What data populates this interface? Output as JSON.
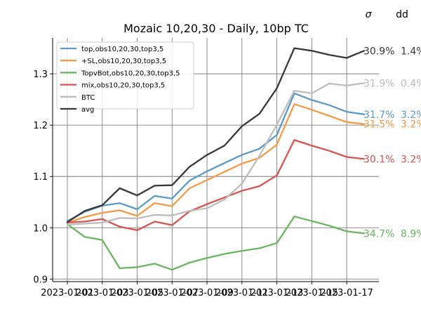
{
  "chart_data": {
    "type": "line",
    "title": "Mozaic 10,20,30 - Daily, 10bp TC",
    "xlabel": "",
    "ylabel": "",
    "x": [
      "2023-01-01",
      "2023-01-02",
      "2023-01-03",
      "2023-01-04",
      "2023-01-05",
      "2023-01-06",
      "2023-01-07",
      "2023-01-08",
      "2023-01-09",
      "2023-01-10",
      "2023-01-11",
      "2023-01-12",
      "2023-01-13",
      "2023-01-14",
      "2023-01-15",
      "2023-01-16",
      "2023-01-17",
      "2023-01-18"
    ],
    "xticks": [
      "2023-01-01",
      "2023-01-03",
      "2023-01-05",
      "2023-01-07",
      "2023-01-09",
      "2023-01-11",
      "2023-01-13",
      "2023-01-15",
      "2023-01-17"
    ],
    "ylim": [
      0.895,
      1.37
    ],
    "yticks": [
      0.9,
      1.0,
      1.1,
      1.2,
      1.3
    ],
    "ytick_labels": [
      "0.9",
      "1.0",
      "1.1",
      "1.2",
      "1.3"
    ],
    "grid": true,
    "legend_position": "top-left",
    "header_labels": {
      "sigma": "σ",
      "dd": "dd"
    },
    "series": [
      {
        "name": "top,obs10,20,30,top3,5",
        "color": "#5b9bc8",
        "sigma": "31.7%",
        "dd": "3.2%",
        "values": [
          1.013,
          1.031,
          1.043,
          1.048,
          1.036,
          1.062,
          1.057,
          1.092,
          1.11,
          1.126,
          1.142,
          1.154,
          1.181,
          1.262,
          1.249,
          1.239,
          1.226,
          1.221
        ]
      },
      {
        "name": "+SL,obs10,20,30,top3,5",
        "color": "#f79a45",
        "sigma": "31.5%",
        "dd": "3.2%",
        "values": [
          1.01,
          1.021,
          1.029,
          1.034,
          1.023,
          1.048,
          1.042,
          1.077,
          1.093,
          1.109,
          1.125,
          1.136,
          1.162,
          1.241,
          1.23,
          1.218,
          1.206,
          1.202
        ]
      },
      {
        "name": "TopvBot,obs10,20,30,top3,5",
        "color": "#6ab55f",
        "sigma": "34.7%",
        "dd": "8.9%",
        "values": [
          1.007,
          0.982,
          0.976,
          0.921,
          0.923,
          0.93,
          0.918,
          0.932,
          0.941,
          0.949,
          0.955,
          0.96,
          0.97,
          1.022,
          1.013,
          1.004,
          0.993,
          0.989
        ]
      },
      {
        "name": "mix,obs10,20,30,top3,5",
        "color": "#d9534f",
        "sigma": "30.1%",
        "dd": "3.2%",
        "values": [
          1.01,
          1.012,
          1.017,
          1.002,
          0.995,
          1.012,
          1.005,
          1.032,
          1.046,
          1.059,
          1.072,
          1.081,
          1.102,
          1.171,
          1.16,
          1.15,
          1.138,
          1.134
        ]
      },
      {
        "name": "BTC",
        "color": "#bdbdbd",
        "sigma": "31.9%",
        "dd": "0.4%",
        "values": [
          1.006,
          1.008,
          1.01,
          1.019,
          1.018,
          1.025,
          1.024,
          1.033,
          1.038,
          1.055,
          1.086,
          1.14,
          1.201,
          1.267,
          1.262,
          1.281,
          1.277,
          1.282
        ]
      },
      {
        "name": "avg",
        "color": "#383838",
        "sigma": "30.9%",
        "dd": "1.4%",
        "values": [
          1.011,
          1.033,
          1.044,
          1.077,
          1.063,
          1.082,
          1.083,
          1.119,
          1.142,
          1.16,
          1.198,
          1.222,
          1.272,
          1.35,
          1.345,
          1.337,
          1.331,
          1.345
        ]
      }
    ]
  }
}
